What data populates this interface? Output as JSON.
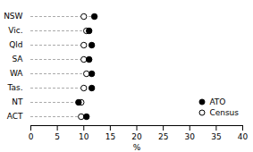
{
  "chart_data": {
    "type": "dot",
    "orientation": "horizontal",
    "categories": [
      "NSW",
      "Vic.",
      "Qld",
      "SA",
      "WA",
      "Tas.",
      "NT",
      "ACT"
    ],
    "series": [
      {
        "name": "ATO",
        "color": "black",
        "values": [
          12.0,
          11.0,
          11.5,
          11.0,
          11.5,
          11.5,
          9.0,
          10.5
        ]
      },
      {
        "name": "Census",
        "color": "white",
        "values": [
          10.0,
          10.5,
          10.0,
          10.0,
          10.5,
          10.0,
          9.5,
          9.5
        ]
      }
    ],
    "xlim": [
      0,
      40
    ],
    "xticks": [
      0,
      5,
      10,
      15,
      20,
      25,
      30,
      35,
      40
    ],
    "xlabel": "%",
    "legend": "lower right",
    "grid": false
  }
}
